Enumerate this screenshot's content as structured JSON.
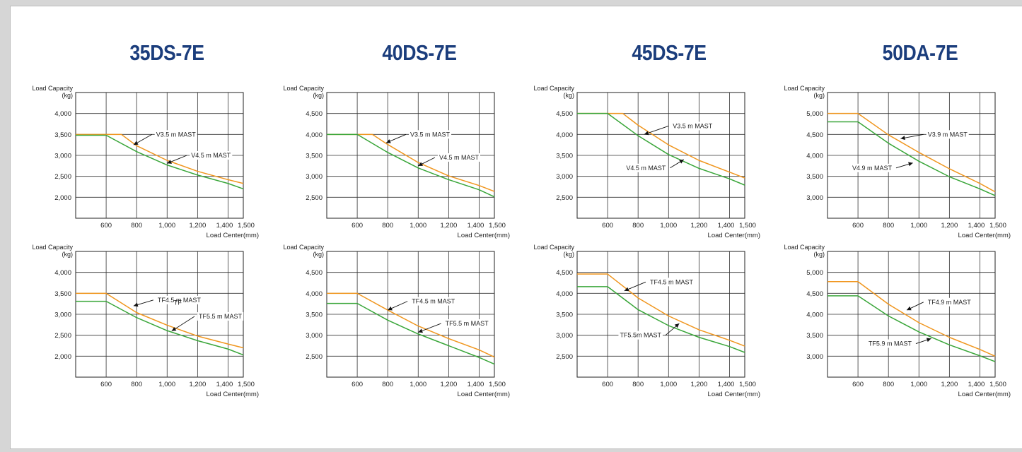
{
  "models": [
    {
      "title": "35DS-7E",
      "charts": [
        {
          "type": "line",
          "ylabel": "Load Capacity",
          "yunit": "(kg)",
          "xlabel": "Load Center(mm)",
          "x_ticks": [
            "600",
            "800",
            "1,000",
            "1,200",
            "1,400",
            "1,500"
          ],
          "y_ticks": [
            "4,000",
            "3,500",
            "3,000",
            "2,500",
            "2,000"
          ],
          "y_tick_values": [
            4000,
            3500,
            3000,
            2500,
            2000
          ],
          "xlim": [
            400,
            1500
          ],
          "ylim": [
            1500,
            4500
          ],
          "grid": true,
          "series": [
            {
              "name": "V3.5 m MAST",
              "color": "#f0961e",
              "x": [
                400,
                700,
                800,
                1000,
                1200,
                1400,
                1500
              ],
              "y": [
                3500,
                3500,
                3230,
                2880,
                2620,
                2420,
                2330
              ]
            },
            {
              "name": "V4.5 m MAST",
              "color": "#3aa63a",
              "x": [
                400,
                600,
                800,
                1000,
                1200,
                1400,
                1500
              ],
              "y": [
                3480,
                3480,
                3090,
                2770,
                2530,
                2330,
                2200
              ]
            }
          ],
          "annotations": [
            {
              "text": "V3.5 m MAST",
              "at": [
                780,
                3250
              ],
              "label_at": [
                900,
                3500
              ],
              "align": "left"
            },
            {
              "text": "V4.5 m MAST",
              "at": [
                1000,
                2810
              ],
              "label_at": [
                1130,
                3000
              ],
              "align": "left"
            }
          ]
        },
        {
          "type": "line",
          "ylabel": "Load Capacity",
          "yunit": "(kg)",
          "xlabel": "Load Center(mm)",
          "x_ticks": [
            "600",
            "800",
            "1,000",
            "1,200",
            "1,400",
            "1,500"
          ],
          "y_ticks": [
            "4,000",
            "3,500",
            "3,000",
            "2,500",
            "2,000"
          ],
          "y_tick_values": [
            4000,
            3500,
            3000,
            2500,
            2000
          ],
          "xlim": [
            400,
            1500
          ],
          "ylim": [
            1500,
            4500
          ],
          "grid": true,
          "series": [
            {
              "name": "TF4.5 m MAST",
              "color": "#f0961e",
              "x": [
                400,
                600,
                800,
                1000,
                1200,
                1400,
                1500
              ],
              "y": [
                3500,
                3500,
                3040,
                2740,
                2480,
                2290,
                2200
              ]
            },
            {
              "name": "TF5.5 m MAST",
              "color": "#3aa63a",
              "x": [
                400,
                600,
                800,
                1000,
                1200,
                1400,
                1500
              ],
              "y": [
                3310,
                3310,
                2920,
                2610,
                2370,
                2170,
                2030
              ]
            }
          ],
          "annotations": [
            {
              "text": "TF4.5 m MAST",
              "at": [
                780,
                3200
              ],
              "label_at": [
                910,
                3340
              ],
              "align": "left"
            },
            {
              "text": "TF5.5 m MAST",
              "at": [
                1030,
                2600
              ],
              "label_at": [
                1180,
                2950
              ],
              "align": "left"
            }
          ],
          "extra_text": "TF"
        }
      ]
    },
    {
      "title": "40DS-7E",
      "charts": [
        {
          "type": "line",
          "ylabel": "Load Capacity",
          "yunit": "(kg)",
          "xlabel": "Load Center(mm)",
          "x_ticks": [
            "600",
            "800",
            "1,000",
            "1,200",
            "1,400",
            "1,500"
          ],
          "y_ticks": [
            "4,500",
            "4,000",
            "3,500",
            "3,000",
            "2,500"
          ],
          "y_tick_values": [
            4500,
            4000,
            3500,
            3000,
            2500
          ],
          "xlim": [
            400,
            1500
          ],
          "ylim": [
            2000,
            5000
          ],
          "grid": true,
          "series": [
            {
              "name": "V3.5 m MAST",
              "color": "#f0961e",
              "x": [
                400,
                700,
                800,
                1000,
                1200,
                1400,
                1500
              ],
              "y": [
                4000,
                4000,
                3760,
                3330,
                3010,
                2780,
                2640
              ]
            },
            {
              "name": "V4.5 m MAST",
              "color": "#3aa63a",
              "x": [
                400,
                600,
                800,
                1000,
                1200,
                1400,
                1500
              ],
              "y": [
                4000,
                4000,
                3570,
                3200,
                2920,
                2680,
                2510
              ]
            }
          ],
          "annotations": [
            {
              "text": "V3.5 m MAST",
              "at": [
                790,
                3800
              ],
              "label_at": [
                920,
                4000
              ],
              "align": "left"
            },
            {
              "text": "V4.5 m MAST",
              "at": [
                1000,
                3250
              ],
              "label_at": [
                1110,
                3450
              ],
              "align": "left"
            }
          ]
        },
        {
          "type": "line",
          "ylabel": "Load Capacity",
          "yunit": "(kg)",
          "xlabel": "Load Center(mm)",
          "x_ticks": [
            "600",
            "800",
            "1,000",
            "1,200",
            "1,400",
            "1,500"
          ],
          "y_ticks": [
            "4,500",
            "4,000",
            "3,500",
            "3,000",
            "2,500"
          ],
          "y_tick_values": [
            4500,
            4000,
            3500,
            3000,
            2500
          ],
          "xlim": [
            400,
            1500
          ],
          "ylim": [
            2000,
            5000
          ],
          "grid": true,
          "series": [
            {
              "name": "TF4.5 m MAST",
              "color": "#f0961e",
              "x": [
                400,
                600,
                800,
                1000,
                1200,
                1400,
                1500
              ],
              "y": [
                4000,
                4000,
                3600,
                3220,
                2920,
                2650,
                2480
              ]
            },
            {
              "name": "TF5.5 m MAST",
              "color": "#3aa63a",
              "x": [
                400,
                600,
                800,
                1000,
                1200,
                1400,
                1500
              ],
              "y": [
                3760,
                3760,
                3360,
                3030,
                2750,
                2470,
                2310
              ]
            }
          ],
          "annotations": [
            {
              "text": "TF4.5 m MAST",
              "at": [
                800,
                3600
              ],
              "label_at": [
                930,
                3810
              ],
              "align": "left"
            },
            {
              "text": "TF5.5 m MAST",
              "at": [
                1000,
                3070
              ],
              "label_at": [
                1150,
                3280
              ],
              "align": "left"
            }
          ]
        }
      ]
    },
    {
      "title": "45DS-7E",
      "charts": [
        {
          "type": "line",
          "ylabel": "Load Capacity",
          "yunit": "(kg)",
          "xlabel": "Load Center(mm)",
          "x_ticks": [
            "600",
            "800",
            "1,000",
            "1,200",
            "1,400",
            "1,500"
          ],
          "y_ticks": [
            "4,500",
            "4,000",
            "3,500",
            "3,000",
            "2,500"
          ],
          "y_tick_values": [
            4500,
            4000,
            3500,
            3000,
            2500
          ],
          "xlim": [
            400,
            1500
          ],
          "ylim": [
            2000,
            5000
          ],
          "grid": true,
          "series": [
            {
              "name": "V3.5 m MAST",
              "color": "#f0961e",
              "x": [
                400,
                700,
                800,
                1000,
                1200,
                1400,
                1500
              ],
              "y": [
                4500,
                4500,
                4220,
                3750,
                3380,
                3100,
                2960
              ]
            },
            {
              "name": "V4.5 m MAST",
              "color": "#3aa63a",
              "x": [
                400,
                600,
                800,
                1000,
                1200,
                1400,
                1500
              ],
              "y": [
                4500,
                4500,
                3970,
                3520,
                3190,
                2940,
                2790
              ]
            }
          ],
          "annotations": [
            {
              "text": "V3.5 m MAST",
              "at": [
                840,
                4000
              ],
              "label_at": [
                1000,
                4200
              ],
              "align": "left"
            },
            {
              "text": "V4.5 m MAST",
              "at": [
                1100,
                3400
              ],
              "label_at": [
                1010,
                3200
              ],
              "align": "right"
            }
          ]
        },
        {
          "type": "line",
          "ylabel": "Load Capacity",
          "yunit": "(kg)",
          "xlabel": "Load Center(mm)",
          "x_ticks": [
            "600",
            "800",
            "1,000",
            "1,200",
            "1,400",
            "1,500"
          ],
          "y_ticks": [
            "4,500",
            "4,000",
            "3,500",
            "3,000",
            "2,500"
          ],
          "y_tick_values": [
            4500,
            4000,
            3500,
            3000,
            2500
          ],
          "xlim": [
            400,
            1500
          ],
          "ylim": [
            2000,
            5000
          ],
          "grid": true,
          "series": [
            {
              "name": "TF4.5 m MAST",
              "color": "#f0961e",
              "x": [
                400,
                600,
                800,
                1000,
                1200,
                1400,
                1500
              ],
              "y": [
                4460,
                4460,
                3890,
                3460,
                3130,
                2880,
                2740
              ]
            },
            {
              "name": "TF5.5m MAST",
              "color": "#3aa63a",
              "x": [
                400,
                600,
                800,
                1000,
                1200,
                1400,
                1500
              ],
              "y": [
                4160,
                4160,
                3610,
                3230,
                2950,
                2730,
                2590
              ]
            }
          ],
          "annotations": [
            {
              "text": "TF4.5 m MAST",
              "at": [
                710,
                4060
              ],
              "label_at": [
                850,
                4270
              ],
              "align": "left"
            },
            {
              "text": "TF5.5m MAST",
              "at": [
                1070,
                3280
              ],
              "label_at": [
                980,
                3000
              ],
              "align": "right"
            }
          ]
        }
      ]
    },
    {
      "title": "50DA-7E",
      "charts": [
        {
          "type": "line",
          "ylabel": "Load Capacity",
          "yunit": "(kg)",
          "xlabel": "Load Center(mm)",
          "x_ticks": [
            "600",
            "800",
            "1,000",
            "1,200",
            "1,400",
            "1,500"
          ],
          "y_ticks": [
            "5,000",
            "4,500",
            "4,000",
            "3,500",
            "3,000"
          ],
          "y_tick_values": [
            5000,
            4500,
            4000,
            3500,
            3000
          ],
          "xlim": [
            400,
            1500
          ],
          "ylim": [
            2500,
            5500
          ],
          "grid": true,
          "series": [
            {
              "name": "V3.9 m MAST",
              "color": "#f0961e",
              "x": [
                400,
                600,
                800,
                1000,
                1200,
                1400,
                1500
              ],
              "y": [
                5000,
                5000,
                4490,
                4070,
                3680,
                3330,
                3130
              ]
            },
            {
              "name": "V4.9 m MAST",
              "color": "#3aa63a",
              "x": [
                400,
                600,
                800,
                1000,
                1200,
                1400,
                1500
              ],
              "y": [
                4800,
                4800,
                4290,
                3860,
                3490,
                3200,
                3040
              ]
            }
          ],
          "annotations": [
            {
              "text": "V3.9 m MAST",
              "at": [
                880,
                4400
              ],
              "label_at": [
                1030,
                4500
              ],
              "align": "left"
            },
            {
              "text": "V4.9 m MAST",
              "at": [
                960,
                3820
              ],
              "label_at": [
                850,
                3700
              ],
              "align": "right"
            }
          ]
        },
        {
          "type": "line",
          "ylabel": "Load Capacity",
          "yunit": "(kg)",
          "xlabel": "Load Center(mm)",
          "x_ticks": [
            "600",
            "800",
            "1,000",
            "1,200",
            "1,400",
            "1,500"
          ],
          "y_ticks": [
            "5,000",
            "4,500",
            "4,000",
            "3,500",
            "3,000"
          ],
          "y_tick_values": [
            5000,
            4500,
            4000,
            3500,
            3000
          ],
          "xlim": [
            400,
            1500
          ],
          "ylim": [
            2500,
            5500
          ],
          "grid": true,
          "series": [
            {
              "name": "TF4.9 m MAST",
              "color": "#f0961e",
              "x": [
                400,
                600,
                800,
                1000,
                1200,
                1400,
                1500
              ],
              "y": [
                4780,
                4780,
                4240,
                3800,
                3450,
                3160,
                3000
              ]
            },
            {
              "name": "TF5.9 m MAST",
              "color": "#3aa63a",
              "x": [
                400,
                600,
                800,
                1000,
                1200,
                1400,
                1500
              ],
              "y": [
                4440,
                4440,
                3960,
                3580,
                3270,
                3010,
                2870
              ]
            }
          ],
          "annotations": [
            {
              "text": "TF4.9 m MAST",
              "at": [
                920,
                4100
              ],
              "label_at": [
                1030,
                4290
              ],
              "align": "left"
            },
            {
              "text": "TF5.9 m MAST",
              "at": [
                1080,
                3420
              ],
              "label_at": [
                980,
                3300
              ],
              "align": "right"
            }
          ]
        }
      ]
    }
  ]
}
